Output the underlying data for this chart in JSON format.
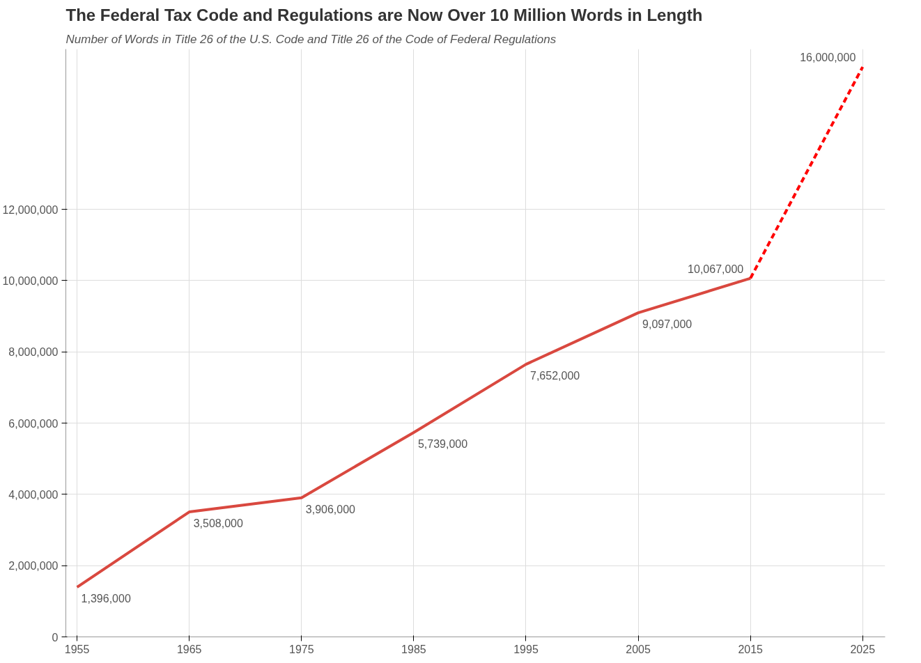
{
  "chart_data": {
    "type": "line",
    "title": "The Federal Tax Code and Regulations are Now Over 10 Million Words in Length",
    "subtitle": "Number of Words in Title 26 of the U.S. Code and Title 26 of the Code of Federal Regulations",
    "xlim": [
      1954,
      2027
    ],
    "ylim": [
      0,
      16500000
    ],
    "xticks": [
      1955,
      1965,
      1975,
      1985,
      1995,
      2005,
      2015,
      2025
    ],
    "yticks": [
      {
        "value": 0,
        "label": "0"
      },
      {
        "value": 2000000,
        "label": "2,000,000"
      },
      {
        "value": 4000000,
        "label": "4,000,000"
      },
      {
        "value": 6000000,
        "label": "6,000,000"
      },
      {
        "value": 8000000,
        "label": "8,000,000"
      },
      {
        "value": 10000000,
        "label": "10,000,000"
      },
      {
        "value": 12000000,
        "label": "12,000,000"
      }
    ],
    "grid": true,
    "marker": "none",
    "series": [
      {
        "color": "#d9483f",
        "line_style": "solid",
        "x": [
          1955,
          1965,
          1975,
          1985,
          1995,
          2005,
          2015
        ],
        "values": [
          1396000,
          3508000,
          3906000,
          5739000,
          7652000,
          9097000,
          10067000
        ],
        "value_labels": [
          "1,396,000",
          "3,508,000",
          "3,906,000",
          "5,739,000",
          "7,652,000",
          "9,097,000",
          "10,067,000"
        ]
      },
      {
        "color": "#ff0000",
        "line_style": "dashed",
        "x": [
          2015,
          2025
        ],
        "values": [
          10067000,
          16000000
        ],
        "value_labels": [
          null,
          "16,000,000"
        ]
      }
    ]
  }
}
